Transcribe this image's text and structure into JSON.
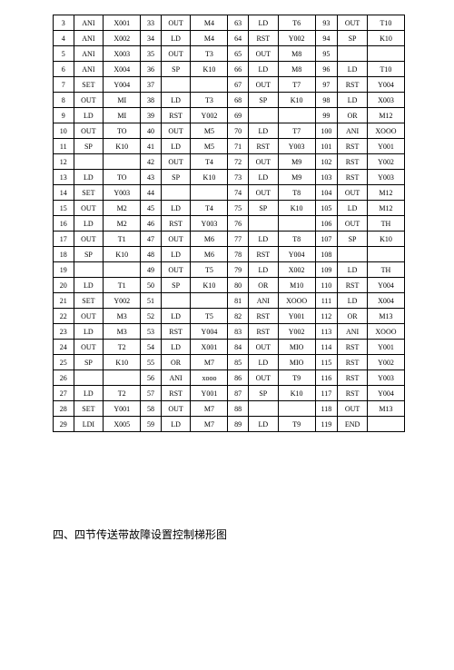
{
  "table": {
    "col_classes": [
      "c0",
      "c1",
      "c2",
      "c3",
      "c4",
      "c5",
      "c6",
      "c7",
      "c8",
      "c9",
      "c10",
      "c11"
    ],
    "rows": [
      [
        "3",
        "ANI",
        "X001",
        "33",
        "OUT",
        "M4",
        "63",
        "LD",
        "T6",
        "93",
        "OUT",
        "T10"
      ],
      [
        "4",
        "ANI",
        "X002",
        "34",
        "LD",
        "M4",
        "64",
        "RST",
        "Y002",
        "94",
        "SP",
        "K10"
      ],
      [
        "5",
        "ANI",
        "X003",
        "35",
        "OUT",
        "T3",
        "65",
        "OUT",
        "M8",
        "95",
        "",
        ""
      ],
      [
        "6",
        "ANI",
        "X004",
        "36",
        "SP",
        "K10",
        "66",
        "LD",
        "M8",
        "96",
        "LD",
        "T10"
      ],
      [
        "7",
        "SET",
        "Y004",
        "37",
        "",
        "",
        "67",
        "OUT",
        "T7",
        "97",
        "RST",
        "Y004"
      ],
      [
        "8",
        "OUT",
        "MI",
        "38",
        "LD",
        "T3",
        "68",
        "SP",
        "K10",
        "98",
        "LD",
        "X003"
      ],
      [
        "9",
        "LD",
        "MI",
        "39",
        "RST",
        "Y002",
        "69",
        "",
        "",
        "99",
        "OR",
        "M12"
      ],
      [
        "10",
        "OUT",
        "TO",
        "40",
        "OUT",
        "M5",
        "70",
        "LD",
        "T7",
        "100",
        "ANI",
        "XOOO"
      ],
      [
        "11",
        "SP",
        "K10",
        "41",
        "LD",
        "M5",
        "71",
        "RST",
        "Y003",
        "101",
        "RST",
        "Y001"
      ],
      [
        "12",
        "",
        "",
        "42",
        "OUT",
        "T4",
        "72",
        "OUT",
        "M9",
        "102",
        "RST",
        "Y002"
      ],
      [
        "13",
        "LD",
        "TO",
        "43",
        "SP",
        "K10",
        "73",
        "LD",
        "M9",
        "103",
        "RST",
        "Y003"
      ],
      [
        "14",
        "SET",
        "Y003",
        "44",
        "",
        "",
        "74",
        "OUT",
        "T8",
        "104",
        "OUT",
        "M12"
      ],
      [
        "15",
        "OUT",
        "M2",
        "45",
        "LD",
        "T4",
        "75",
        "SP",
        "K10",
        "105",
        "LD",
        "M12"
      ],
      [
        "16",
        "LD",
        "M2",
        "46",
        "RST",
        "Y003",
        "76",
        "",
        "",
        "106",
        "OUT",
        "TH"
      ],
      [
        "17",
        "OUT",
        "T1",
        "47",
        "OUT",
        "M6",
        "77",
        "LD",
        "T8",
        "107",
        "SP",
        "K10"
      ],
      [
        "18",
        "SP",
        "K10",
        "48",
        "LD",
        "M6",
        "78",
        "RST",
        "Y004",
        "108",
        "",
        ""
      ],
      [
        "19",
        "",
        "",
        "49",
        "OUT",
        "T5",
        "79",
        "LD",
        "X002",
        "109",
        "LD",
        "TH"
      ],
      [
        "20",
        "LD",
        "T1",
        "50",
        "SP",
        "K10",
        "80",
        "OR",
        "M10",
        "110",
        "RST",
        "Y004"
      ],
      [
        "21",
        "SET",
        "Y002",
        "51",
        "",
        "",
        "81",
        "ANI",
        "XOOO",
        "111",
        "LD",
        "X004"
      ],
      [
        "22",
        "OUT",
        "M3",
        "52",
        "LD",
        "T5",
        "82",
        "RST",
        "Y001",
        "112",
        "OR",
        "M13"
      ],
      [
        "23",
        "LD",
        "M3",
        "53",
        "RST",
        "Y004",
        "83",
        "RST",
        "Y002",
        "113",
        "ANI",
        "XOOO"
      ],
      [
        "24",
        "OUT",
        "T2",
        "54",
        "LD",
        "X001",
        "84",
        "OUT",
        "MIO",
        "114",
        "RST",
        "Y001"
      ],
      [
        "25",
        "SP",
        "K10",
        "55",
        "OR",
        "M7",
        "85",
        "LD",
        "MIO",
        "115",
        "RST",
        "Y002"
      ],
      [
        "26",
        "",
        "",
        "56",
        "ANI",
        "xooo",
        "86",
        "OUT",
        "T9",
        "116",
        "RST",
        "Y003"
      ],
      [
        "27",
        "LD",
        "T2",
        "57",
        "RST",
        "Y001",
        "87",
        "SP",
        "K10",
        "117",
        "RST",
        "Y004"
      ],
      [
        "28",
        "SET",
        "Y001",
        "58",
        "OUT",
        "M7",
        "88",
        "",
        "",
        "118",
        "OUT",
        "M13"
      ],
      [
        "29",
        "LDI",
        "X005",
        "59",
        "LD",
        "M7",
        "89",
        "LD",
        "T9",
        "119",
        "END",
        ""
      ]
    ]
  },
  "caption": "四、四节传送带故障设置控制梯形图"
}
